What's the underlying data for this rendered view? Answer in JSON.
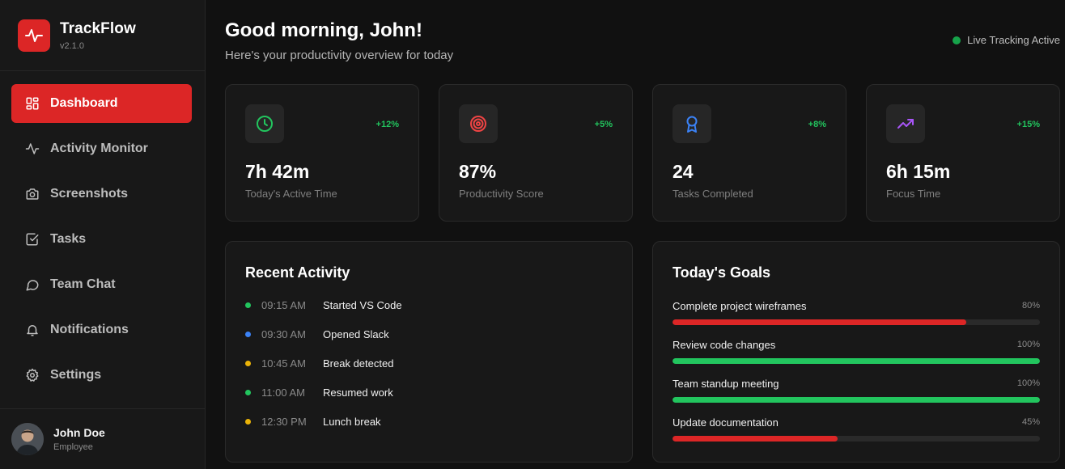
{
  "brand": {
    "name": "TrackFlow",
    "version": "v2.1.0",
    "color": "#dc2626"
  },
  "nav": [
    {
      "label": "Dashboard",
      "icon": "grid-icon",
      "active": true
    },
    {
      "label": "Activity Monitor",
      "icon": "activity-icon"
    },
    {
      "label": "Screenshots",
      "icon": "camera-icon"
    },
    {
      "label": "Tasks",
      "icon": "check-square-icon"
    },
    {
      "label": "Team Chat",
      "icon": "chat-bubble-icon"
    },
    {
      "label": "Notifications",
      "icon": "bell-icon"
    },
    {
      "label": "Settings",
      "icon": "gear-icon"
    }
  ],
  "user": {
    "name": "John Doe",
    "role": "Employee"
  },
  "header": {
    "greeting": "Good morning, John!",
    "subtitle": "Here's your productivity overview for today",
    "live_status": "Live Tracking Active"
  },
  "stats": [
    {
      "value": "7h 42m",
      "label": "Today's Active Time",
      "change": "+12%",
      "icon": "clock-icon",
      "icon_color": "#22c55e"
    },
    {
      "value": "87%",
      "label": "Productivity Score",
      "change": "+5%",
      "icon": "target-icon",
      "icon_color": "#ef4444"
    },
    {
      "value": "24",
      "label": "Tasks Completed",
      "change": "+8%",
      "icon": "award-icon",
      "icon_color": "#3b82f6"
    },
    {
      "value": "6h 15m",
      "label": "Focus Time",
      "change": "+15%",
      "icon": "trending-up-icon",
      "icon_color": "#a855f7"
    }
  ],
  "recent_activity": {
    "title": "Recent Activity",
    "items": [
      {
        "time": "09:15 AM",
        "text": "Started VS Code",
        "color": "#22c55e"
      },
      {
        "time": "09:30 AM",
        "text": "Opened Slack",
        "color": "#3b82f6"
      },
      {
        "time": "10:45 AM",
        "text": "Break detected",
        "color": "#eab308"
      },
      {
        "time": "11:00 AM",
        "text": "Resumed work",
        "color": "#22c55e"
      },
      {
        "time": "12:30 PM",
        "text": "Lunch break",
        "color": "#eab308"
      }
    ]
  },
  "goals": {
    "title": "Today's Goals",
    "items": [
      {
        "name": "Complete project wireframes",
        "pct_label": "80%",
        "progress": 80,
        "color": "#dc2626"
      },
      {
        "name": "Review code changes",
        "pct_label": "100%",
        "progress": 100,
        "color": "#22c55e"
      },
      {
        "name": "Team standup meeting",
        "pct_label": "100%",
        "progress": 100,
        "color": "#22c55e"
      },
      {
        "name": "Update documentation",
        "pct_label": "45%",
        "progress": 45,
        "color": "#dc2626"
      }
    ]
  }
}
